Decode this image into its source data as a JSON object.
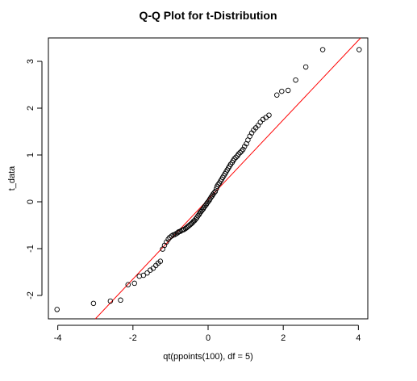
{
  "chart_data": {
    "type": "scatter",
    "title": "Q-Q Plot for t-Distribution",
    "xlabel": "qt(ppoints(100), df = 5)",
    "ylabel": "t_data",
    "xlim": [
      -4.25,
      4.25
    ],
    "ylim": [
      -2.5,
      3.5
    ],
    "xticks": [
      -4,
      -2,
      0,
      2,
      4
    ],
    "yticks": [
      -2,
      -1,
      0,
      1,
      2,
      3
    ],
    "xtick_labels": [
      "-4",
      "-2",
      "0",
      "2",
      "4"
    ],
    "ytick_labels": [
      "-2",
      "-1",
      "0",
      "1",
      "2",
      "3"
    ],
    "grid": false,
    "reference_line": {
      "intercept": 0.05,
      "slope": 0.85,
      "color": "#ff0000"
    },
    "point_color": "#000000",
    "points": [
      [
        -4.02,
        -2.3
      ],
      [
        -3.05,
        -2.17
      ],
      [
        -2.6,
        -2.12
      ],
      [
        -2.33,
        -2.1
      ],
      [
        -2.13,
        -1.77
      ],
      [
        -1.96,
        -1.74
      ],
      [
        -1.83,
        -1.59
      ],
      [
        -1.72,
        -1.57
      ],
      [
        -1.62,
        -1.52
      ],
      [
        -1.54,
        -1.46
      ],
      [
        -1.46,
        -1.42
      ],
      [
        -1.39,
        -1.36
      ],
      [
        -1.33,
        -1.31
      ],
      [
        -1.27,
        -1.27
      ],
      [
        -1.21,
        -1.01
      ],
      [
        -1.16,
        -0.93
      ],
      [
        -1.11,
        -0.86
      ],
      [
        -1.06,
        -0.8
      ],
      [
        -1.02,
        -0.76
      ],
      [
        -0.97,
        -0.73
      ],
      [
        -0.93,
        -0.71
      ],
      [
        -0.89,
        -0.7
      ],
      [
        -0.85,
        -0.68
      ],
      [
        -0.81,
        -0.66
      ],
      [
        -0.78,
        -0.64
      ],
      [
        -0.74,
        -0.63
      ],
      [
        -0.7,
        -0.61
      ],
      [
        -0.67,
        -0.6
      ],
      [
        -0.64,
        -0.59
      ],
      [
        -0.6,
        -0.57
      ],
      [
        -0.57,
        -0.55
      ],
      [
        -0.54,
        -0.53
      ],
      [
        -0.51,
        -0.51
      ],
      [
        -0.48,
        -0.49
      ],
      [
        -0.45,
        -0.47
      ],
      [
        -0.42,
        -0.45
      ],
      [
        -0.39,
        -0.42
      ],
      [
        -0.36,
        -0.4
      ],
      [
        -0.33,
        -0.37
      ],
      [
        -0.3,
        -0.34
      ],
      [
        -0.27,
        -0.3
      ],
      [
        -0.24,
        -0.27
      ],
      [
        -0.22,
        -0.24
      ],
      [
        -0.19,
        -0.21
      ],
      [
        -0.16,
        -0.18
      ],
      [
        -0.13,
        -0.15
      ],
      [
        -0.11,
        -0.12
      ],
      [
        -0.08,
        -0.09
      ],
      [
        -0.05,
        -0.06
      ],
      [
        -0.03,
        -0.03
      ],
      [
        0.0,
        0.0
      ],
      [
        0.03,
        0.03
      ],
      [
        0.05,
        0.06
      ],
      [
        0.08,
        0.1
      ],
      [
        0.11,
        0.13
      ],
      [
        0.13,
        0.16
      ],
      [
        0.16,
        0.19
      ],
      [
        0.19,
        0.22
      ],
      [
        0.22,
        0.28
      ],
      [
        0.24,
        0.33
      ],
      [
        0.27,
        0.37
      ],
      [
        0.3,
        0.4
      ],
      [
        0.33,
        0.44
      ],
      [
        0.36,
        0.48
      ],
      [
        0.39,
        0.52
      ],
      [
        0.42,
        0.56
      ],
      [
        0.45,
        0.6
      ],
      [
        0.48,
        0.64
      ],
      [
        0.51,
        0.68
      ],
      [
        0.54,
        0.72
      ],
      [
        0.57,
        0.76
      ],
      [
        0.6,
        0.8
      ],
      [
        0.64,
        0.84
      ],
      [
        0.67,
        0.88
      ],
      [
        0.7,
        0.92
      ],
      [
        0.74,
        0.95
      ],
      [
        0.78,
        0.98
      ],
      [
        0.81,
        1.02
      ],
      [
        0.85,
        1.05
      ],
      [
        0.89,
        1.08
      ],
      [
        0.93,
        1.12
      ],
      [
        0.97,
        1.18
      ],
      [
        1.02,
        1.24
      ],
      [
        1.06,
        1.32
      ],
      [
        1.11,
        1.4
      ],
      [
        1.16,
        1.47
      ],
      [
        1.21,
        1.53
      ],
      [
        1.27,
        1.58
      ],
      [
        1.33,
        1.63
      ],
      [
        1.39,
        1.7
      ],
      [
        1.46,
        1.76
      ],
      [
        1.54,
        1.8
      ],
      [
        1.62,
        1.85
      ],
      [
        1.83,
        2.28
      ],
      [
        1.96,
        2.36
      ],
      [
        2.13,
        2.38
      ],
      [
        2.33,
        2.6
      ],
      [
        2.6,
        2.88
      ],
      [
        3.05,
        3.25
      ],
      [
        4.02,
        3.25
      ]
    ]
  }
}
